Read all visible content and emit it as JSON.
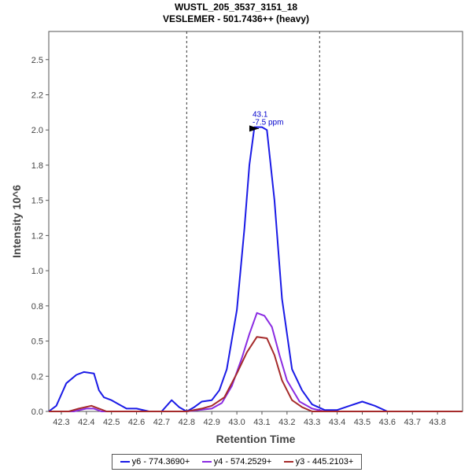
{
  "chart_data": {
    "type": "line",
    "title": "WUSTL_205_3537_3151_18",
    "subtitle": "VESLEMER - 501.7436++ (heavy)",
    "xlabel": "Retention Time",
    "ylabel": "Intensity 10^6",
    "xlim": [
      42.25,
      43.9
    ],
    "ylim": [
      0,
      2.7
    ],
    "x_ticks": [
      "42.3",
      "42.4",
      "42.5",
      "42.6",
      "42.7",
      "42.8",
      "42.9",
      "43.0",
      "43.1",
      "43.2",
      "43.3",
      "43.4",
      "43.5",
      "43.6",
      "43.7",
      "43.8"
    ],
    "y_ticks": [
      "0.0",
      "0.2",
      "0.5",
      "0.8",
      "1.0",
      "1.2",
      "1.5",
      "1.8",
      "2.0",
      "2.2",
      "2.5"
    ],
    "y_tick_values": [
      0,
      0.25,
      0.5,
      0.75,
      1.0,
      1.25,
      1.5,
      1.75,
      2.0,
      2.25,
      2.5
    ],
    "vertical_lines": [
      42.8,
      43.33
    ],
    "peak_annotation": {
      "x": 43.1,
      "y": 2.01,
      "line1": "43.1",
      "line2": "-7.5 ppm",
      "color": "#0000cc"
    },
    "grid": false,
    "legend_position": "bottom",
    "series": [
      {
        "name": "y6 - 774.3690+",
        "color": "#1a1ae6",
        "points": [
          [
            42.25,
            0.0
          ],
          [
            42.28,
            0.04
          ],
          [
            42.32,
            0.2
          ],
          [
            42.36,
            0.26
          ],
          [
            42.39,
            0.28
          ],
          [
            42.43,
            0.27
          ],
          [
            42.45,
            0.15
          ],
          [
            42.47,
            0.1
          ],
          [
            42.5,
            0.08
          ],
          [
            42.53,
            0.05
          ],
          [
            42.56,
            0.02
          ],
          [
            42.6,
            0.02
          ],
          [
            42.65,
            0.0
          ],
          [
            42.7,
            0.0
          ],
          [
            42.74,
            0.08
          ],
          [
            42.77,
            0.03
          ],
          [
            42.8,
            0.0
          ],
          [
            42.83,
            0.03
          ],
          [
            42.86,
            0.07
          ],
          [
            42.9,
            0.08
          ],
          [
            42.93,
            0.15
          ],
          [
            42.96,
            0.3
          ],
          [
            43.0,
            0.72
          ],
          [
            43.03,
            1.3
          ],
          [
            43.05,
            1.75
          ],
          [
            43.07,
            2.02
          ],
          [
            43.1,
            2.02
          ],
          [
            43.12,
            2.0
          ],
          [
            43.15,
            1.5
          ],
          [
            43.18,
            0.8
          ],
          [
            43.22,
            0.3
          ],
          [
            43.26,
            0.15
          ],
          [
            43.3,
            0.05
          ],
          [
            43.35,
            0.01
          ],
          [
            43.4,
            0.01
          ],
          [
            43.45,
            0.04
          ],
          [
            43.5,
            0.07
          ],
          [
            43.55,
            0.04
          ],
          [
            43.6,
            0.0
          ],
          [
            43.9,
            0.0
          ]
        ]
      },
      {
        "name": "y4 - 574.2529+",
        "color": "#8a2be2",
        "points": [
          [
            42.25,
            0.0
          ],
          [
            42.35,
            0.0
          ],
          [
            42.4,
            0.02
          ],
          [
            42.43,
            0.02
          ],
          [
            42.46,
            0.0
          ],
          [
            42.8,
            0.0
          ],
          [
            42.9,
            0.02
          ],
          [
            42.94,
            0.06
          ],
          [
            42.98,
            0.18
          ],
          [
            43.02,
            0.38
          ],
          [
            43.05,
            0.55
          ],
          [
            43.08,
            0.7
          ],
          [
            43.11,
            0.68
          ],
          [
            43.14,
            0.6
          ],
          [
            43.17,
            0.4
          ],
          [
            43.2,
            0.22
          ],
          [
            43.25,
            0.07
          ],
          [
            43.3,
            0.02
          ],
          [
            43.35,
            0.0
          ],
          [
            43.9,
            0.0
          ]
        ]
      },
      {
        "name": "y3 - 445.2103+",
        "color": "#a52a2a",
        "points": [
          [
            42.25,
            0.0
          ],
          [
            42.33,
            0.0
          ],
          [
            42.37,
            0.02
          ],
          [
            42.42,
            0.04
          ],
          [
            42.45,
            0.02
          ],
          [
            42.48,
            0.0
          ],
          [
            42.8,
            0.0
          ],
          [
            42.86,
            0.02
          ],
          [
            42.9,
            0.04
          ],
          [
            42.95,
            0.1
          ],
          [
            43.0,
            0.27
          ],
          [
            43.04,
            0.42
          ],
          [
            43.08,
            0.53
          ],
          [
            43.12,
            0.52
          ],
          [
            43.15,
            0.4
          ],
          [
            43.18,
            0.22
          ],
          [
            43.22,
            0.08
          ],
          [
            43.26,
            0.03
          ],
          [
            43.3,
            0.0
          ],
          [
            43.9,
            0.0
          ]
        ]
      }
    ]
  }
}
